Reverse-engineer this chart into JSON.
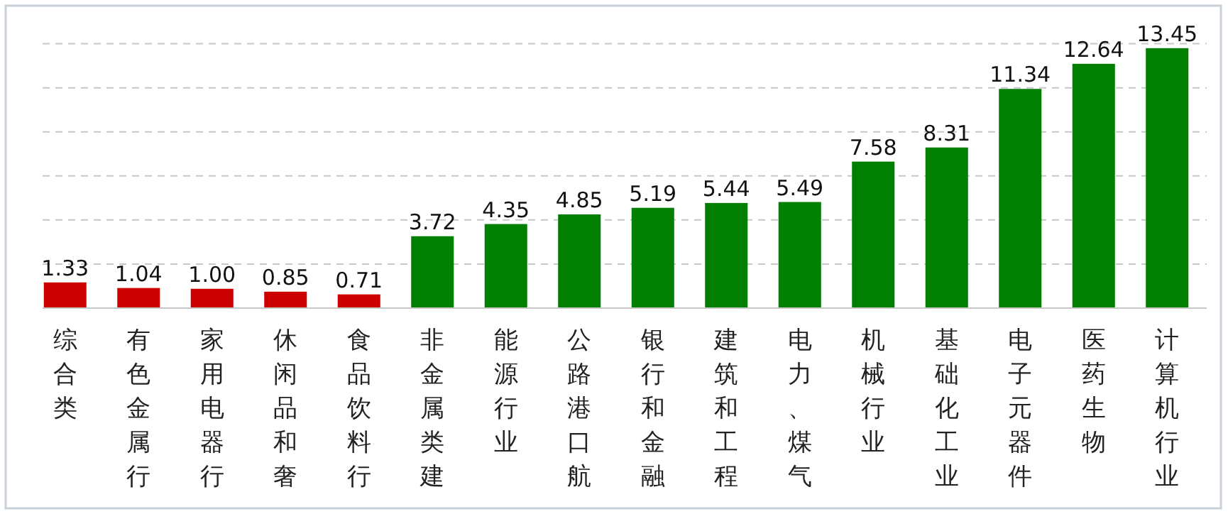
{
  "chart_data": {
    "type": "bar",
    "categories": [
      "综合类",
      "有色金属行",
      "家用电器行",
      "休闲品和奢",
      "食品饮料行",
      "非金属类建",
      "能源行业",
      "公路港口航",
      "银行和金融",
      "建筑和工程",
      "电力、煤气",
      "机械行业",
      "基础化工业",
      "电子元器件",
      "医药生物",
      "计算机行业"
    ],
    "values": [
      1.33,
      1.04,
      1.0,
      0.85,
      0.71,
      3.72,
      4.35,
      4.85,
      5.19,
      5.44,
      5.49,
      7.58,
      8.31,
      11.34,
      12.64,
      13.45
    ],
    "value_labels": [
      "1.33",
      "1.04",
      "1.00",
      "0.85",
      "0.71",
      "3.72",
      "4.35",
      "4.85",
      "5.19",
      "5.44",
      "5.49",
      "7.58",
      "8.31",
      "11.34",
      "12.64",
      "13.45"
    ],
    "colors": [
      "#cc0000",
      "#cc0000",
      "#cc0000",
      "#cc0000",
      "#cc0000",
      "#007f00",
      "#007f00",
      "#007f00",
      "#007f00",
      "#007f00",
      "#007f00",
      "#007f00",
      "#007f00",
      "#007f00",
      "#007f00",
      "#007f00"
    ],
    "ylim": [
      0,
      15.5
    ],
    "yticks": [
      {
        "value": 0,
        "label": null
      },
      {
        "value": 2.28,
        "label": null
      },
      {
        "value": 4.56,
        "label": null
      },
      {
        "value": 6.84,
        "label": null
      },
      {
        "value": 9.12,
        "label": null
      },
      {
        "value": 11.4,
        "label": null
      },
      {
        "value": 13.68,
        "label": null
      }
    ],
    "grid": "y",
    "tick_labels": "x"
  }
}
